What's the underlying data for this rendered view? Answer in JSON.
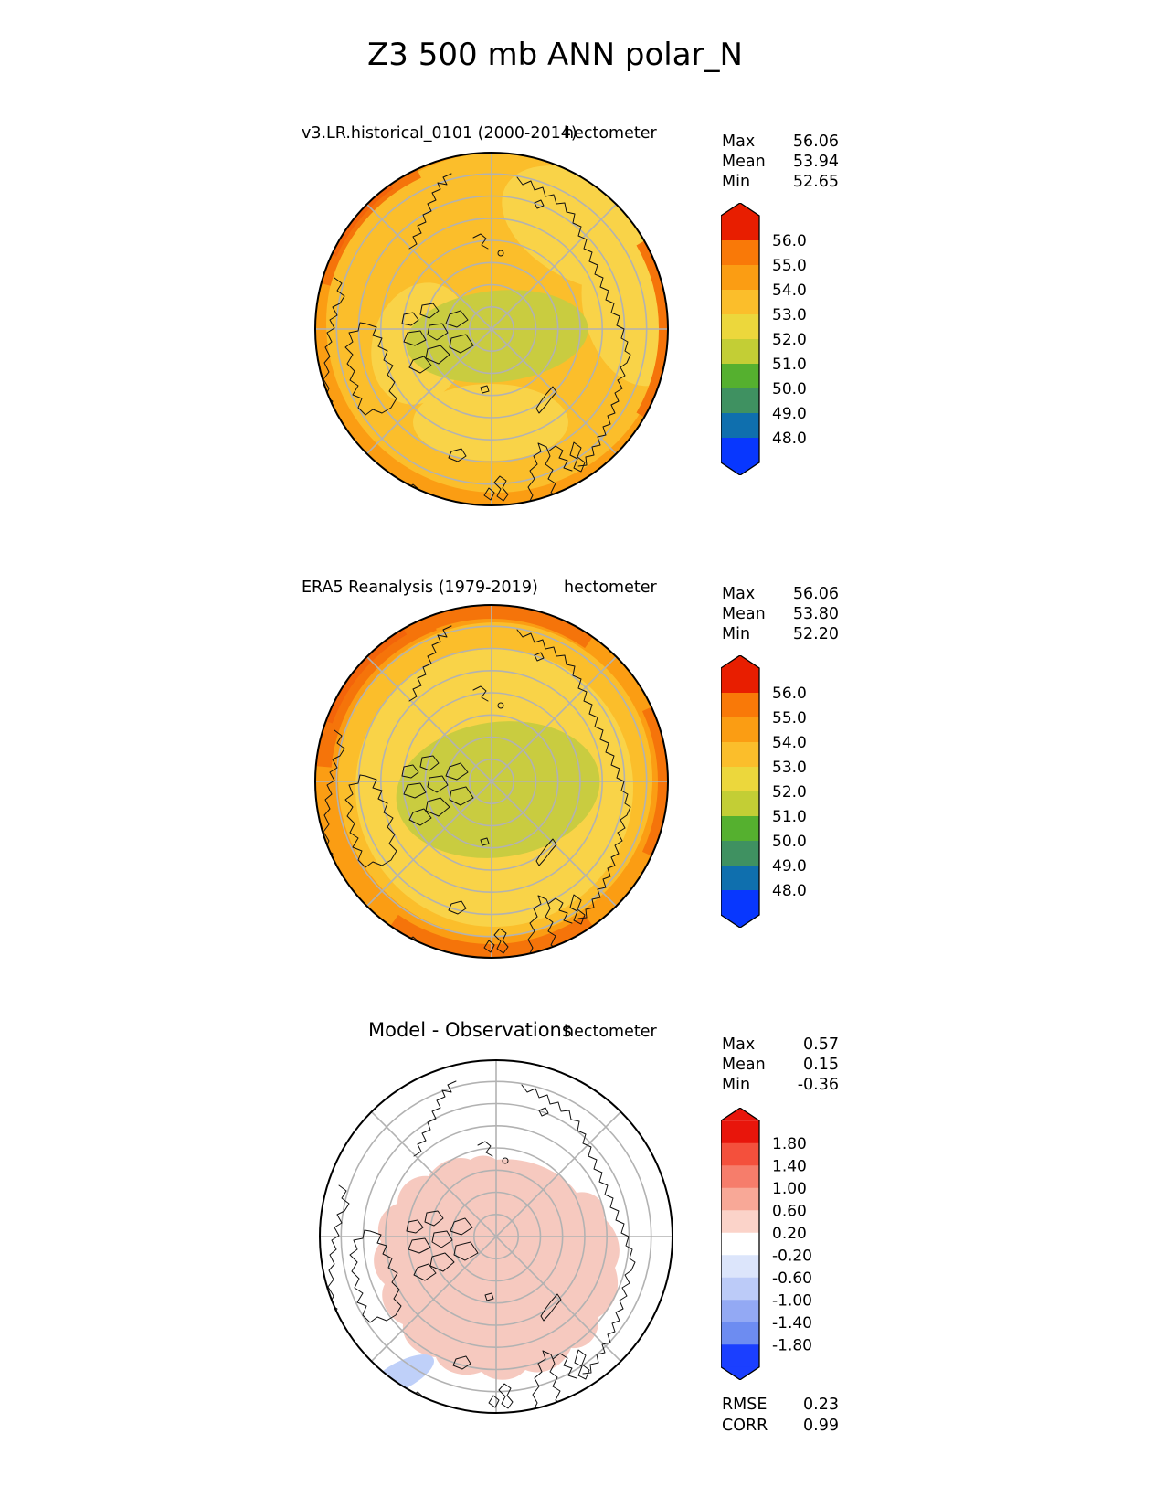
{
  "page_title": "Z3 500 mb ANN polar_N",
  "panels": [
    {
      "title": "v3.LR.historical_0101 (2000-2014)",
      "units": "hectometer",
      "stats": [
        {
          "label": "Max",
          "value": "56.06"
        },
        {
          "label": "Mean",
          "value": "53.94"
        },
        {
          "label": "Min",
          "value": "52.65"
        }
      ]
    },
    {
      "title": "ERA5 Reanalysis (1979-2019)",
      "units": "hectometer",
      "stats": [
        {
          "label": "Max",
          "value": "56.06"
        },
        {
          "label": "Mean",
          "value": "53.80"
        },
        {
          "label": "Min",
          "value": "52.20"
        }
      ]
    },
    {
      "title": "Model - Observations",
      "units": "hectometer",
      "stats": [
        {
          "label": "Max",
          "value": "0.57"
        },
        {
          "label": "Mean",
          "value": "0.15"
        },
        {
          "label": "Min",
          "value": "-0.36"
        }
      ],
      "metrics": [
        {
          "label": "RMSE",
          "value": "0.23"
        },
        {
          "label": "CORR",
          "value": "0.99"
        }
      ]
    }
  ],
  "colorbars": {
    "absolute": {
      "ticks": [
        "56.0",
        "55.0",
        "54.0",
        "53.0",
        "52.0",
        "51.0",
        "50.0",
        "49.0",
        "48.0"
      ],
      "colors": [
        "#e81e00",
        "#f97908",
        "#fb9d13",
        "#fbbe2b",
        "#ecd73c",
        "#c3ce35",
        "#55b02f",
        "#3f9161",
        "#0f6fae",
        "#0837fe"
      ],
      "seg_h": 27
    },
    "diff": {
      "ticks": [
        "1.80",
        "1.40",
        "1.00",
        "0.60",
        "0.20",
        "-0.20",
        "-0.60",
        "-1.00",
        "-1.40",
        "-1.80"
      ],
      "colors": [
        "#e8150b",
        "#f4503c",
        "#f67d6b",
        "#f8a897",
        "#fbd3c9",
        "#ffffff",
        "#dce5fb",
        "#bccbf8",
        "#93a9f4",
        "#6d8cf1",
        "#1b3fff"
      ],
      "seg_h": 24.5
    }
  },
  "chart_data": {
    "type": "heatmap",
    "figure": "three polar-stereographic (Northern Hemisphere) filled-contour maps with colorbars",
    "title": "Z3 500 mb ANN polar_N",
    "units": "hectometer",
    "panels": [
      {
        "name": "v3.LR.historical_0101 (2000-2014)",
        "max": 56.06,
        "mean": 53.94,
        "min": 52.65,
        "colorbar_ticks": [
          56.0,
          55.0,
          54.0,
          53.0,
          52.0,
          51.0,
          50.0,
          49.0,
          48.0
        ],
        "colorbar_extend": "both"
      },
      {
        "name": "ERA5 Reanalysis (1979-2019)",
        "max": 56.06,
        "mean": 53.8,
        "min": 52.2,
        "colorbar_ticks": [
          56.0,
          55.0,
          54.0,
          53.0,
          52.0,
          51.0,
          50.0,
          49.0,
          48.0
        ],
        "colorbar_extend": "both"
      },
      {
        "name": "Model - Observations",
        "max": 0.57,
        "mean": 0.15,
        "min": -0.36,
        "rmse": 0.23,
        "corr": 0.99,
        "colorbar_ticks": [
          1.8,
          1.4,
          1.0,
          0.6,
          0.2,
          -0.2,
          -0.6,
          -1.0,
          -1.4,
          -1.8
        ],
        "colorbar_extend": "both"
      }
    ]
  }
}
